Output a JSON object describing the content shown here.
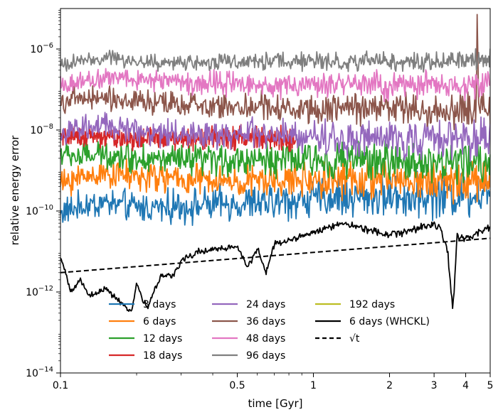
{
  "chart_data": {
    "type": "line",
    "title": "",
    "xlabel": "time [Gyr]",
    "ylabel": "relative energy error",
    "xscale": "log",
    "yscale": "log",
    "xlim": [
      0.1,
      5
    ],
    "ylim": [
      1e-14,
      1e-05
    ],
    "x_ticks": [
      {
        "value": 0.1,
        "label": "0.1"
      },
      {
        "value": 0.5,
        "label": "0.5"
      },
      {
        "value": 1,
        "label": "1"
      },
      {
        "value": 2,
        "label": "2"
      },
      {
        "value": 3,
        "label": "3"
      },
      {
        "value": 4,
        "label": "4"
      },
      {
        "value": 5,
        "label": "5"
      }
    ],
    "y_ticks": [
      {
        "value": 1e-14,
        "base": "10",
        "exp": "−14"
      },
      {
        "value": 1e-12,
        "base": "10",
        "exp": "−12"
      },
      {
        "value": 1e-10,
        "base": "10",
        "exp": "−10"
      },
      {
        "value": 1e-08,
        "base": "10",
        "exp": "−8"
      },
      {
        "value": 1e-06,
        "base": "10",
        "exp": "−6"
      }
    ],
    "legend_position": "lower-center",
    "series": [
      {
        "name": "3 days",
        "color": "#1f77b4",
        "style": "solid",
        "noise": 0.45,
        "x": [
          0.1,
          0.12,
          0.15,
          0.2,
          0.3,
          0.5,
          0.7,
          1,
          1.5,
          2,
          3,
          4,
          5
        ],
        "values": [
          9e-11,
          1.3e-10,
          1.6e-10,
          1.2e-10,
          1.3e-10,
          1.5e-10,
          1.6e-10,
          2e-10,
          2.2e-10,
          2.3e-10,
          2.4e-10,
          2.6e-10,
          3e-10
        ]
      },
      {
        "name": "6 days",
        "color": "#ff7f0e",
        "style": "solid",
        "noise": 0.42,
        "x": [
          0.1,
          0.12,
          0.15,
          0.2,
          0.3,
          0.5,
          0.7,
          1,
          1.5,
          2,
          3,
          4,
          5
        ],
        "values": [
          4.5e-10,
          7e-10,
          9e-10,
          7e-10,
          6e-10,
          5e-10,
          5.5e-10,
          6e-10,
          6e-10,
          6e-10,
          5.5e-10,
          5.5e-10,
          6e-10
        ]
      },
      {
        "name": "12 days",
        "color": "#2ca02c",
        "style": "solid",
        "noise": 0.42,
        "x": [
          0.1,
          0.12,
          0.15,
          0.2,
          0.3,
          0.5,
          0.7,
          1,
          1.5,
          2,
          3,
          4,
          5
        ],
        "values": [
          2.5e-09,
          2.2e-09,
          2.5e-09,
          2e-09,
          1.7e-09,
          1.8e-09,
          1.9e-09,
          1.8e-09,
          1.8e-09,
          1.7e-09,
          1.6e-09,
          1.5e-09,
          1.5e-09
        ]
      },
      {
        "name": "18 days",
        "color": "#d62728",
        "style": "solid",
        "noise": 0.3,
        "x": [
          0.1,
          0.12,
          0.15,
          0.2,
          0.3,
          0.5,
          0.7,
          0.85
        ],
        "values": [
          6e-09,
          7e-09,
          6.5e-09,
          6e-09,
          6e-09,
          6.5e-09,
          6e-09,
          5.5e-09
        ]
      },
      {
        "name": "24 days",
        "color": "#9467bd",
        "style": "solid",
        "noise": 0.4,
        "x": [
          0.1,
          0.12,
          0.15,
          0.2,
          0.3,
          0.5,
          0.7,
          1,
          1.5,
          2,
          3,
          4,
          5
        ],
        "values": [
          8e-09,
          1e-08,
          1.2e-08,
          1e-08,
          8e-09,
          8e-09,
          7e-09,
          7e-09,
          6e-09,
          6e-09,
          6e-09,
          6e-09,
          6e-09
        ]
      },
      {
        "name": "36 days",
        "color": "#8c564b",
        "style": "solid",
        "noise": 0.35,
        "x": [
          0.1,
          0.12,
          0.15,
          0.2,
          0.3,
          0.5,
          0.7,
          1,
          1.5,
          2,
          3,
          4,
          4.4,
          4.45,
          4.5,
          5
        ],
        "values": [
          5e-08,
          6e-08,
          6e-08,
          5e-08,
          4e-08,
          4e-08,
          3.5e-08,
          3.5e-08,
          3.5e-08,
          3.5e-08,
          3e-08,
          3e-08,
          3e-08,
          1e-05,
          3e-08,
          3e-08
        ]
      },
      {
        "name": "48 days",
        "color": "#e377c2",
        "style": "solid",
        "noise": 0.3,
        "x": [
          0.1,
          0.12,
          0.15,
          0.2,
          0.3,
          0.5,
          0.7,
          1,
          1.5,
          2,
          3,
          4,
          5
        ],
        "values": [
          1.2e-07,
          1.6e-07,
          2e-07,
          1.8e-07,
          1.5e-07,
          1.4e-07,
          1.3e-07,
          1.3e-07,
          1.3e-07,
          1.2e-07,
          1.2e-07,
          1.2e-07,
          1.3e-07
        ]
      },
      {
        "name": "96 days",
        "color": "#7f7f7f",
        "style": "solid",
        "noise": 0.22,
        "x": [
          0.1,
          0.12,
          0.15,
          0.2,
          0.3,
          0.5,
          0.7,
          1,
          1.5,
          2,
          3,
          4,
          5
        ],
        "values": [
          4e-07,
          5e-07,
          6e-07,
          5e-07,
          4.5e-07,
          5e-07,
          5e-07,
          5e-07,
          5e-07,
          5e-07,
          5e-07,
          5.5e-07,
          6e-07
        ]
      },
      {
        "name": "192 days",
        "color": "#bcbd22",
        "style": "solid",
        "noise": 0,
        "x": [],
        "values": []
      },
      {
        "name": "6 days (WHCKL)",
        "color": "#000000",
        "style": "solid",
        "noise": 0.08,
        "x": [
          0.1,
          0.105,
          0.11,
          0.12,
          0.13,
          0.15,
          0.17,
          0.19,
          0.2,
          0.22,
          0.25,
          0.28,
          0.3,
          0.35,
          0.4,
          0.5,
          0.55,
          0.6,
          0.65,
          0.7,
          0.75,
          0.8,
          1.0,
          1.3,
          1.5,
          2.0,
          2.5,
          3.0,
          3.2,
          3.4,
          3.5,
          3.55,
          3.6,
          3.7,
          4.0,
          4.5,
          5.0
        ],
        "values": [
          7e-12,
          3e-12,
          1e-12,
          2e-12,
          8e-13,
          1.2e-12,
          6e-13,
          3e-13,
          1.5e-12,
          4e-13,
          2.5e-12,
          2.5e-12,
          6e-12,
          1e-11,
          1.1e-11,
          1.3e-11,
          4e-12,
          1.2e-11,
          3e-12,
          1.5e-11,
          1.6e-11,
          1.8e-11,
          3e-11,
          5e-11,
          4e-11,
          2.5e-11,
          3.5e-11,
          5e-11,
          3.5e-11,
          1e-11,
          1e-12,
          5e-13,
          1e-12,
          2.5e-11,
          2e-11,
          3e-11,
          4e-11
        ]
      },
      {
        "name": "√t",
        "color": "#000000",
        "style": "dashed",
        "noise": 0,
        "x": [
          0.1,
          5
        ],
        "values": [
          3e-12,
          2.12e-11
        ]
      }
    ]
  }
}
